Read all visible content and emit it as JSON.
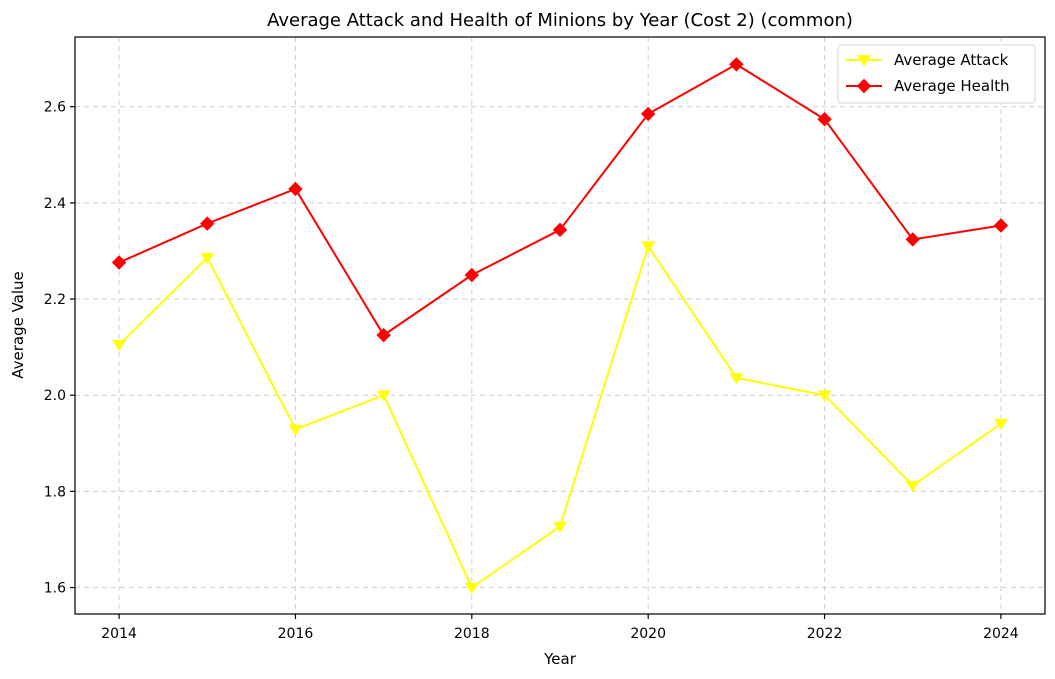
{
  "chart_data": {
    "type": "line",
    "title": "Average Attack and Health of Minions by Year (Cost 2) (common)",
    "xlabel": "Year",
    "ylabel": "Average Value",
    "x": [
      2014,
      2015,
      2016,
      2017,
      2018,
      2019,
      2020,
      2021,
      2022,
      2023,
      2024
    ],
    "xlim": [
      2013.5,
      2024.5
    ],
    "ylim": [
      1.545,
      2.745
    ],
    "x_ticks": [
      2014,
      2016,
      2018,
      2020,
      2022,
      2024
    ],
    "x_tick_labels": [
      "2014",
      "2016",
      "2018",
      "2020",
      "2022",
      "2024"
    ],
    "y_ticks": [
      1.6,
      1.8,
      2.0,
      2.2,
      2.4,
      2.6
    ],
    "y_tick_labels": [
      "1.6",
      "1.8",
      "2.0",
      "2.2",
      "2.4",
      "2.6"
    ],
    "grid": true,
    "legend_position": "top-right",
    "series": [
      {
        "name": "Average Attack",
        "color": "#ffff00",
        "marker": "triangle-down",
        "values": [
          2.105,
          2.286,
          1.929,
          2.0,
          1.6,
          1.727,
          2.31,
          2.036,
          2.0,
          1.812,
          1.941
        ]
      },
      {
        "name": "Average Health",
        "color": "#ff0000",
        "marker": "diamond",
        "values": [
          2.276,
          2.357,
          2.429,
          2.125,
          2.25,
          2.344,
          2.585,
          2.688,
          2.574,
          2.324,
          2.353
        ]
      }
    ]
  }
}
